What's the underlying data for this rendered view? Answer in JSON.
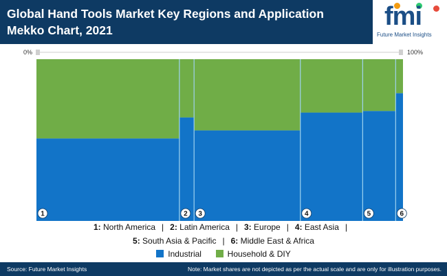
{
  "header": {
    "title": "Global Hand Tools Market Key Regions and Application Mekko Chart, 2021",
    "logo_text": "fmi",
    "logo_subtitle": "Future Market Insights"
  },
  "axis": {
    "left_label": "0%",
    "right_label": "100%"
  },
  "chart_data": {
    "type": "mekko",
    "title": "Global Hand Tools Market Key Regions and Application Mekko Chart, 2021",
    "categories": [
      {
        "id": "1",
        "name": "North America",
        "width": 39
      },
      {
        "id": "2",
        "name": "Latin America",
        "width": 4
      },
      {
        "id": "3",
        "name": "Europe",
        "width": 29
      },
      {
        "id": "4",
        "name": "East Asia",
        "width": 17
      },
      {
        "id": "5",
        "name": "South Asia & Pacific",
        "width": 9
      },
      {
        "id": "6",
        "name": "Middle East & Africa",
        "width": 2
      }
    ],
    "series": [
      {
        "name": "Industrial",
        "color": "#1274c8",
        "values": [
          51,
          64,
          56,
          67,
          68,
          79
        ]
      },
      {
        "name": "Household & DIY",
        "color": "#70ad47",
        "values": [
          49,
          36,
          44,
          33,
          32,
          21
        ]
      }
    ],
    "xlim": [
      0,
      100
    ],
    "ylim": [
      0,
      100
    ]
  },
  "legend": {
    "line1": [
      {
        "num": "1:",
        "name": "North America"
      },
      {
        "num": "2:",
        "name": "Latin America"
      },
      {
        "num": "3:",
        "name": "Europe"
      },
      {
        "num": "4:",
        "name": "East Asia"
      }
    ],
    "line2": [
      {
        "num": "5:",
        "name": "South Asia & Pacific"
      },
      {
        "num": "6:",
        "name": "Middle East & Africa"
      }
    ],
    "separator": "|"
  },
  "footer": {
    "source": "Source: Future Market Insights",
    "note": "Note: Market shares are not depicted as per the actual scale and are only for illustration purposes."
  },
  "colors": {
    "header_bg": "#0e3a63",
    "industrial": "#1274c8",
    "household": "#70ad47"
  }
}
